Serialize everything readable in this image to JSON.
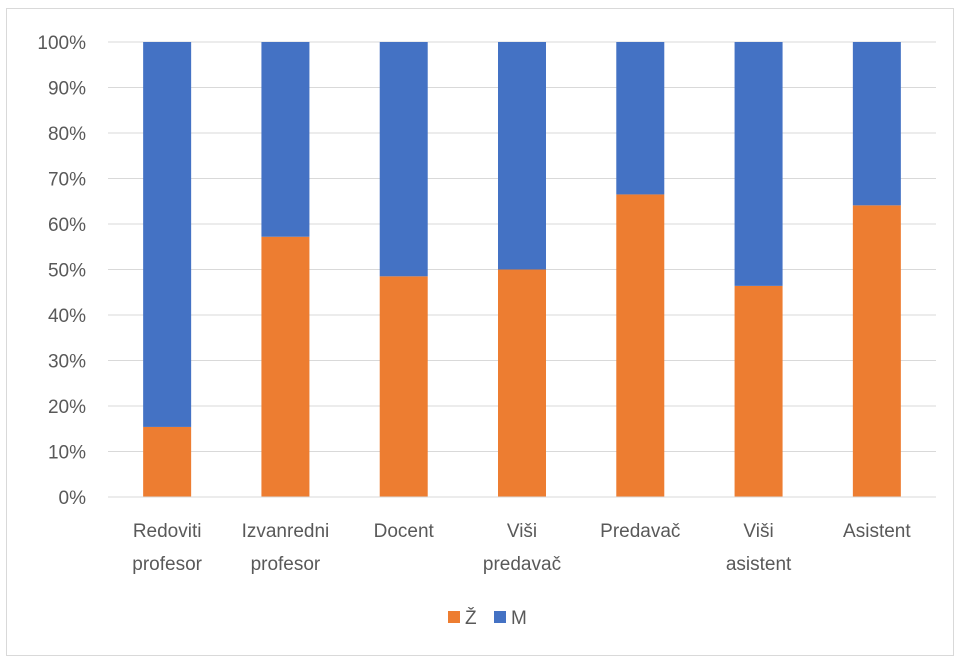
{
  "chart_data": {
    "type": "bar",
    "stacked": true,
    "percent_stacked": true,
    "categories": [
      [
        "Redoviti",
        "profesor"
      ],
      [
        "Izvanredni",
        "profesor"
      ],
      [
        "Docent"
      ],
      [
        "Viši",
        "predavač"
      ],
      [
        "Predavač"
      ],
      [
        "Viši",
        "asistent"
      ],
      [
        "Asistent"
      ]
    ],
    "series": [
      {
        "name": "Ž",
        "color": "#ED7D31",
        "values": [
          15.4,
          57.2,
          48.5,
          50.0,
          66.5,
          46.4,
          64.1
        ]
      },
      {
        "name": "M",
        "color": "#4472C4",
        "values": [
          84.6,
          42.8,
          51.5,
          50.0,
          33.5,
          53.6,
          35.9
        ]
      }
    ],
    "ylim": [
      0,
      100
    ],
    "yticks": [
      "0%",
      "10%",
      "20%",
      "30%",
      "40%",
      "50%",
      "60%",
      "70%",
      "80%",
      "90%",
      "100%"
    ],
    "grid": true,
    "legend_position": "bottom",
    "title": "",
    "xlabel": "",
    "ylabel": ""
  }
}
